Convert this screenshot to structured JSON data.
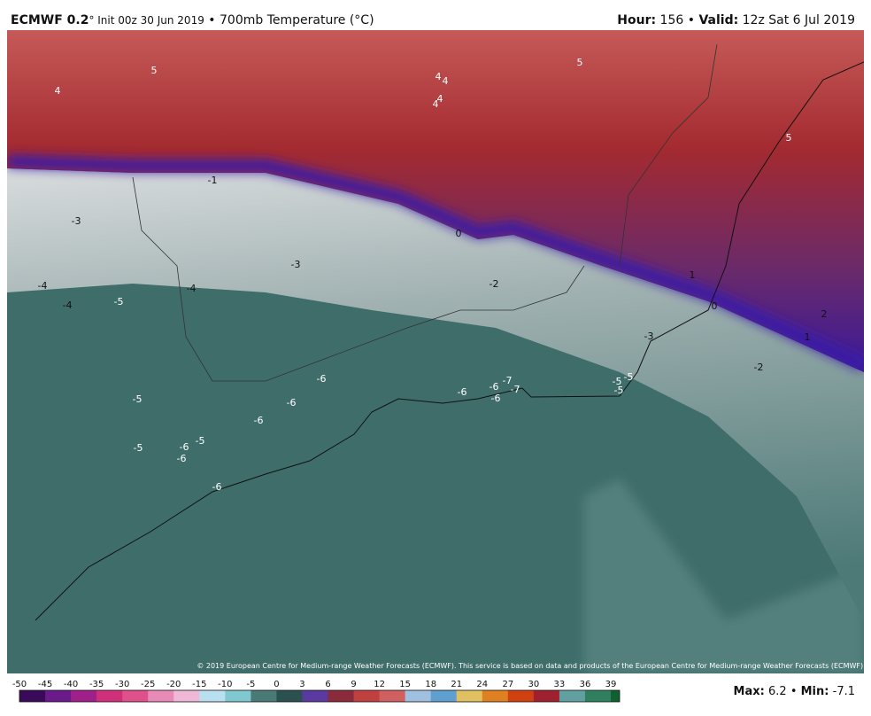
{
  "header": {
    "model": "ECMWF 0.2",
    "init": "° Init 00z 30 Jun 2019",
    "sep": "•",
    "field": "700mb Temperature (°C)",
    "hour_label": "Hour:",
    "hour": "156",
    "valid_label": "Valid:",
    "valid": "12z Sat 6 Jul 2019"
  },
  "map": {
    "labels": [
      "5",
      "4",
      "4",
      "4",
      "4",
      "4",
      "5",
      "5",
      "-1",
      "-3",
      "-3",
      "0",
      "-2",
      "1",
      "0",
      "2",
      "1",
      "-3",
      "-2",
      "-4",
      "-4",
      "-5",
      "-4",
      "-6",
      "-6",
      "-6",
      "-5",
      "-5",
      "-6",
      "-5",
      "-6",
      "-6",
      "-6",
      "-6",
      "-7",
      "-7",
      "-6",
      "-5",
      "-5",
      "-5"
    ],
    "copyright": "© 2019 European Centre for Medium-range Weather Forecasts (ECMWF). This service is based on data and products of the European Centre for Medium-range Weather Forecasts (ECMWF)."
  },
  "colorbar": {
    "ticks": [
      -50,
      -45,
      -40,
      -35,
      -30,
      -25,
      -20,
      -15,
      -10,
      -5,
      0,
      3,
      6,
      9,
      12,
      15,
      18,
      21,
      24,
      27,
      30,
      33,
      36,
      39
    ]
  },
  "stats": {
    "max_label": "Max:",
    "max": "6.2",
    "min_label": "Min:",
    "min": "-7.1"
  }
}
